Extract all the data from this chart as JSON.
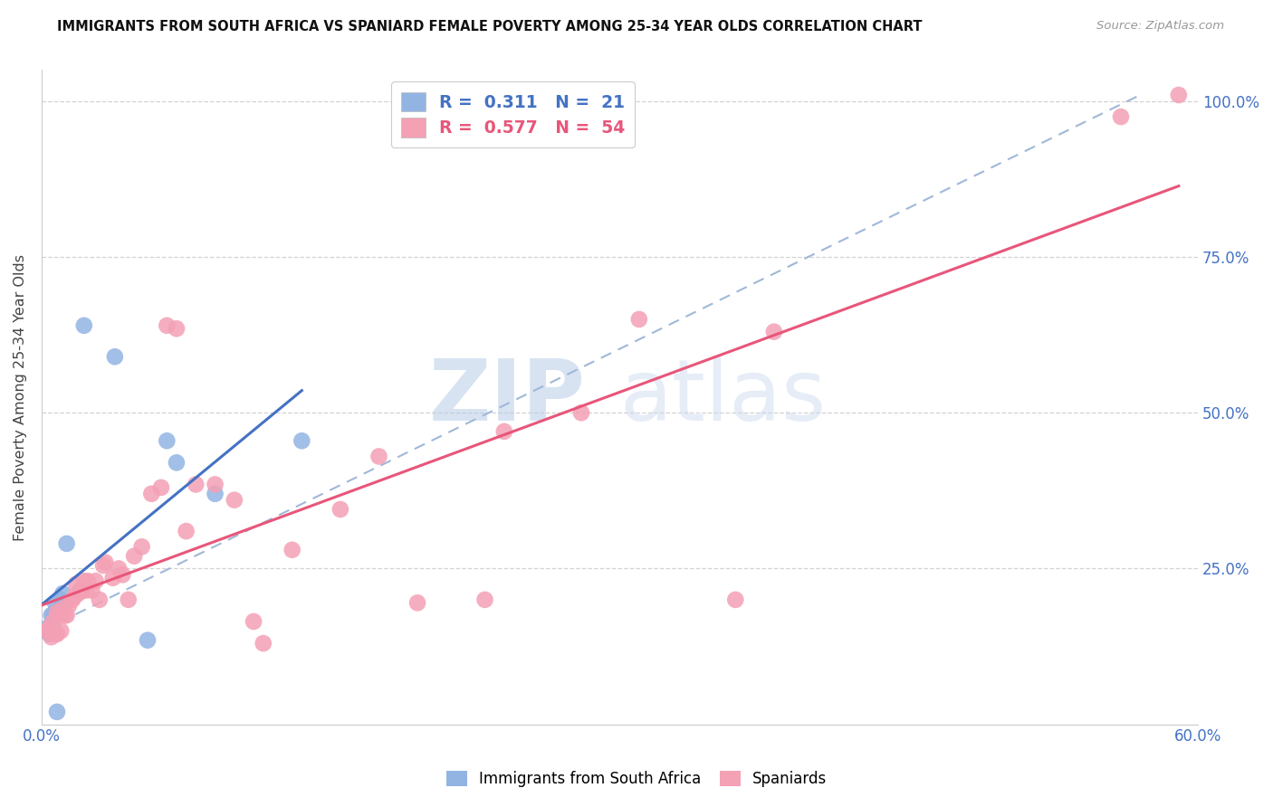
{
  "title": "IMMIGRANTS FROM SOUTH AFRICA VS SPANIARD FEMALE POVERTY AMONG 25-34 YEAR OLDS CORRELATION CHART",
  "source": "Source: ZipAtlas.com",
  "ylabel": "Female Poverty Among 25-34 Year Olds",
  "xlim": [
    0.0,
    0.6
  ],
  "ylim": [
    0.0,
    1.05
  ],
  "xticks": [
    0.0,
    0.1,
    0.2,
    0.3,
    0.4,
    0.5,
    0.6
  ],
  "xticklabels": [
    "0.0%",
    "",
    "",
    "",
    "",
    "",
    "60.0%"
  ],
  "yticks": [
    0.0,
    0.25,
    0.5,
    0.75,
    1.0
  ],
  "yticklabels_right": [
    "",
    "25.0%",
    "50.0%",
    "75.0%",
    "100.0%"
  ],
  "legend_r1_val": "0.311",
  "legend_n1_val": "21",
  "legend_r2_val": "0.577",
  "legend_n2_val": "54",
  "blue_color": "#92b4e3",
  "pink_color": "#f4a0b5",
  "blue_line_color": "#4472c4",
  "pink_line_color": "#e8567a",
  "diagonal_color": "#a0b8d8",
  "watermark": "ZIPatlas",
  "blue_scatter_x": [
    0.003,
    0.004,
    0.005,
    0.006,
    0.006,
    0.007,
    0.007,
    0.008,
    0.009,
    0.01,
    0.011,
    0.012,
    0.013,
    0.02,
    0.022,
    0.038,
    0.055,
    0.065,
    0.07,
    0.09,
    0.135
  ],
  "blue_scatter_y": [
    0.155,
    0.145,
    0.175,
    0.155,
    0.175,
    0.18,
    0.195,
    0.02,
    0.175,
    0.2,
    0.21,
    0.195,
    0.29,
    0.215,
    0.64,
    0.59,
    0.135,
    0.455,
    0.42,
    0.37,
    0.455
  ],
  "pink_scatter_x": [
    0.003,
    0.004,
    0.005,
    0.006,
    0.007,
    0.008,
    0.008,
    0.009,
    0.01,
    0.011,
    0.012,
    0.013,
    0.014,
    0.016,
    0.017,
    0.018,
    0.019,
    0.021,
    0.022,
    0.023,
    0.024,
    0.026,
    0.028,
    0.03,
    0.032,
    0.033,
    0.037,
    0.04,
    0.042,
    0.045,
    0.048,
    0.052,
    0.057,
    0.062,
    0.065,
    0.07,
    0.075,
    0.08,
    0.09,
    0.1,
    0.11,
    0.115,
    0.13,
    0.155,
    0.175,
    0.195,
    0.23,
    0.24,
    0.28,
    0.31,
    0.36,
    0.38,
    0.56,
    0.59
  ],
  "pink_scatter_y": [
    0.15,
    0.155,
    0.14,
    0.165,
    0.145,
    0.145,
    0.18,
    0.175,
    0.15,
    0.185,
    0.175,
    0.175,
    0.19,
    0.2,
    0.205,
    0.225,
    0.21,
    0.215,
    0.23,
    0.215,
    0.23,
    0.215,
    0.23,
    0.2,
    0.255,
    0.26,
    0.235,
    0.25,
    0.24,
    0.2,
    0.27,
    0.285,
    0.37,
    0.38,
    0.64,
    0.635,
    0.31,
    0.385,
    0.385,
    0.36,
    0.165,
    0.13,
    0.28,
    0.345,
    0.43,
    0.195,
    0.2,
    0.47,
    0.5,
    0.65,
    0.2,
    0.63,
    0.975,
    1.01
  ],
  "background_color": "#ffffff",
  "grid_color": "#d3d3d3"
}
